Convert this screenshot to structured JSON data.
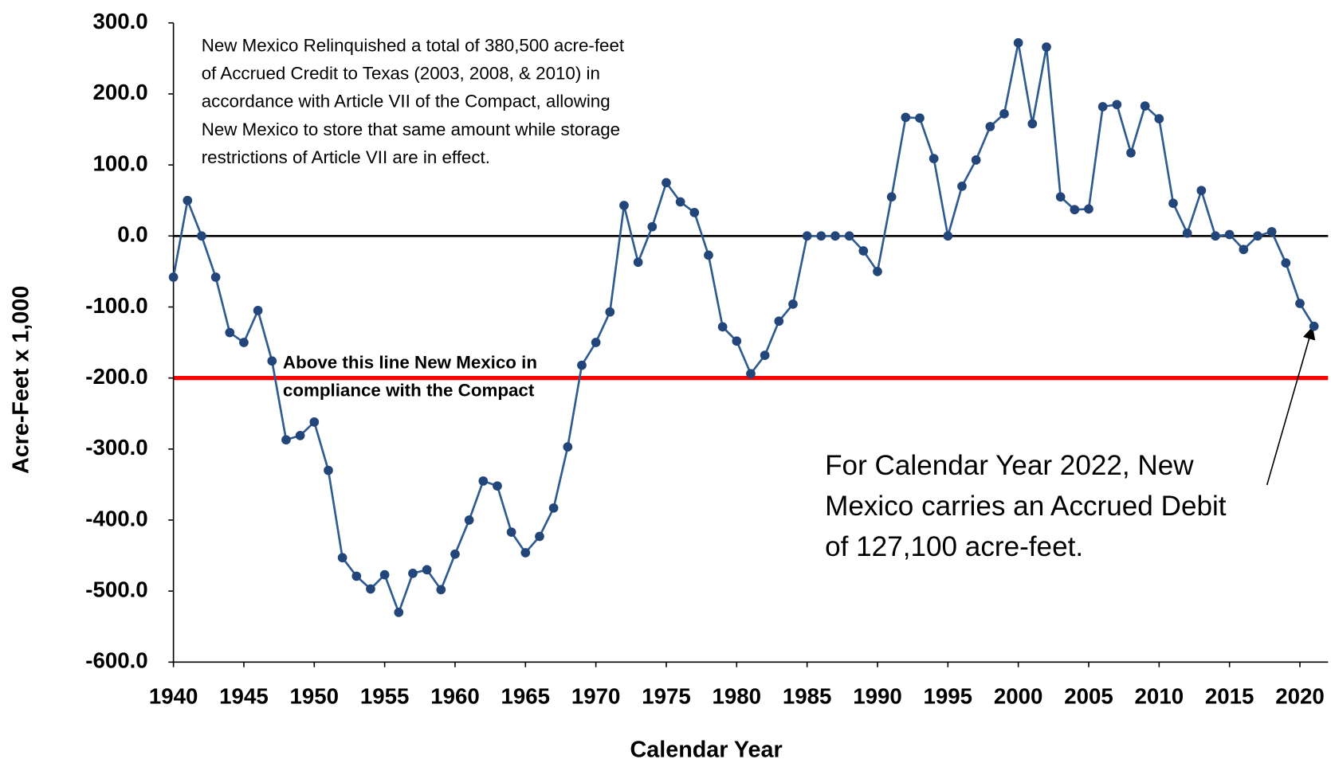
{
  "chart_data": {
    "type": "line",
    "x_label": "Calendar Year",
    "y_label": "Acre-Feet x 1,000",
    "x": [
      1940,
      1941,
      1942,
      1943,
      1944,
      1945,
      1946,
      1947,
      1948,
      1949,
      1950,
      1951,
      1952,
      1953,
      1954,
      1955,
      1956,
      1957,
      1958,
      1959,
      1960,
      1961,
      1962,
      1963,
      1964,
      1965,
      1966,
      1967,
      1968,
      1969,
      1970,
      1971,
      1972,
      1973,
      1974,
      1975,
      1976,
      1977,
      1978,
      1979,
      1980,
      1981,
      1982,
      1983,
      1984,
      1985,
      1986,
      1987,
      1988,
      1989,
      1990,
      1991,
      1992,
      1993,
      1994,
      1995,
      1996,
      1997,
      1998,
      1999,
      2000,
      2001,
      2002,
      2003,
      2004,
      2005,
      2006,
      2007,
      2008,
      2009,
      2010,
      2011,
      2012,
      2013,
      2014,
      2015,
      2016,
      2017,
      2018,
      2019,
      2020,
      2021
    ],
    "values": [
      -58,
      50,
      0,
      -58,
      -136,
      -150,
      -105,
      -176,
      -287,
      -281,
      -262,
      -330,
      -453,
      -479,
      -497,
      -477,
      -530,
      -475,
      -470,
      -498,
      -448,
      -400,
      -345,
      -352,
      -417,
      -446,
      -423,
      -383,
      -297,
      -182,
      -150,
      -107,
      43,
      -37,
      13,
      75,
      48,
      33,
      -27,
      -128,
      -148,
      -194,
      -168,
      -120,
      -96,
      0,
      0,
      0,
      0,
      -21,
      -50,
      55,
      167,
      166,
      109,
      0,
      70,
      107,
      154,
      172,
      272,
      158,
      266,
      55,
      37,
      38,
      182,
      185,
      117,
      183,
      165,
      46,
      4,
      64,
      0,
      2,
      -19,
      0,
      6,
      -38,
      -95,
      -127.1
    ],
    "color": "#2f5b91",
    "marker_color": "#23467a",
    "xlim": [
      1940,
      2022
    ],
    "xticks": [
      1940,
      1945,
      1950,
      1955,
      1960,
      1965,
      1970,
      1975,
      1980,
      1985,
      1990,
      1995,
      2000,
      2005,
      2010,
      2015,
      2020
    ],
    "ylim": [
      -600,
      300
    ],
    "yticks": [
      {
        "value": 300,
        "label": "300.0"
      },
      {
        "value": 200,
        "label": "200.0"
      },
      {
        "value": 100,
        "label": "100.0"
      },
      {
        "value": 0,
        "label": "0.0"
      },
      {
        "value": -100,
        "label": "-100.0"
      },
      {
        "value": -200,
        "label": "-200.0"
      },
      {
        "value": -300,
        "label": "-300.0"
      },
      {
        "value": -400,
        "label": "-400.0"
      },
      {
        "value": -500,
        "label": "-500.0"
      },
      {
        "value": -600,
        "label": "-600.0"
      }
    ],
    "reference_lines": [
      {
        "value": 0,
        "color": "#000000"
      },
      {
        "value": -200,
        "color": "#ff0000",
        "label": [
          "Above this line New Mexico in",
          "compliance with the Compact"
        ]
      }
    ],
    "annotations": [
      [
        "New Mexico Relinquished a total of 380,500 acre-feet",
        "of Accrued Credit to Texas (2003, 2008, & 2010) in",
        "accordance with Article VII of the Compact, allowing",
        "New Mexico to store that same amount while storage",
        "restrictions of Article VII are in effect."
      ],
      [
        "For Calendar Year 2022, New",
        "Mexico carries an Accrued Debit",
        "of 127,100 acre-feet."
      ]
    ]
  }
}
